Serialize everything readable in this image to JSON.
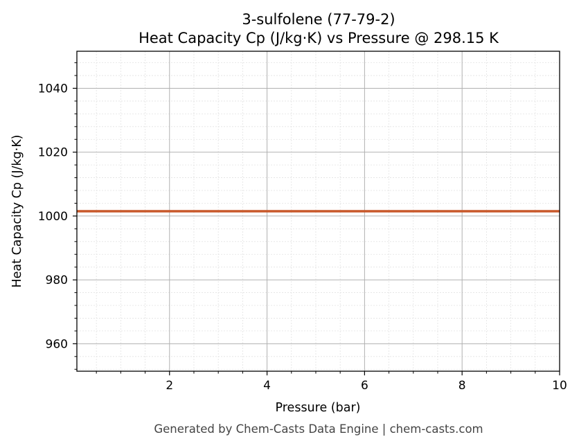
{
  "chart_data": {
    "type": "line",
    "title": [
      "3-sulfolene (77-79-2)",
      "Heat Capacity Cp (J/kg·K) vs Pressure @ 298.15 K"
    ],
    "xlabel": "Pressure (bar)",
    "ylabel": "Heat Capacity Cp (J/kg·K)",
    "xlim": [
      0.1,
      10
    ],
    "ylim": [
      951.4,
      1051.6
    ],
    "x_ticks": [
      2,
      4,
      6,
      8,
      10
    ],
    "y_ticks": [
      960,
      980,
      1000,
      1020,
      1040
    ],
    "grid": true,
    "minor_grid": true,
    "series": [
      {
        "color": "#c8582a",
        "x": [
          0.1,
          1,
          2,
          3,
          4,
          5,
          6,
          7,
          8,
          9,
          10
        ],
        "y": [
          1001.5,
          1001.5,
          1001.5,
          1001.5,
          1001.5,
          1001.5,
          1001.5,
          1001.5,
          1001.5,
          1001.5,
          1001.5
        ]
      }
    ]
  },
  "footer": "Generated by Chem-Casts Data Engine | chem-casts.com"
}
